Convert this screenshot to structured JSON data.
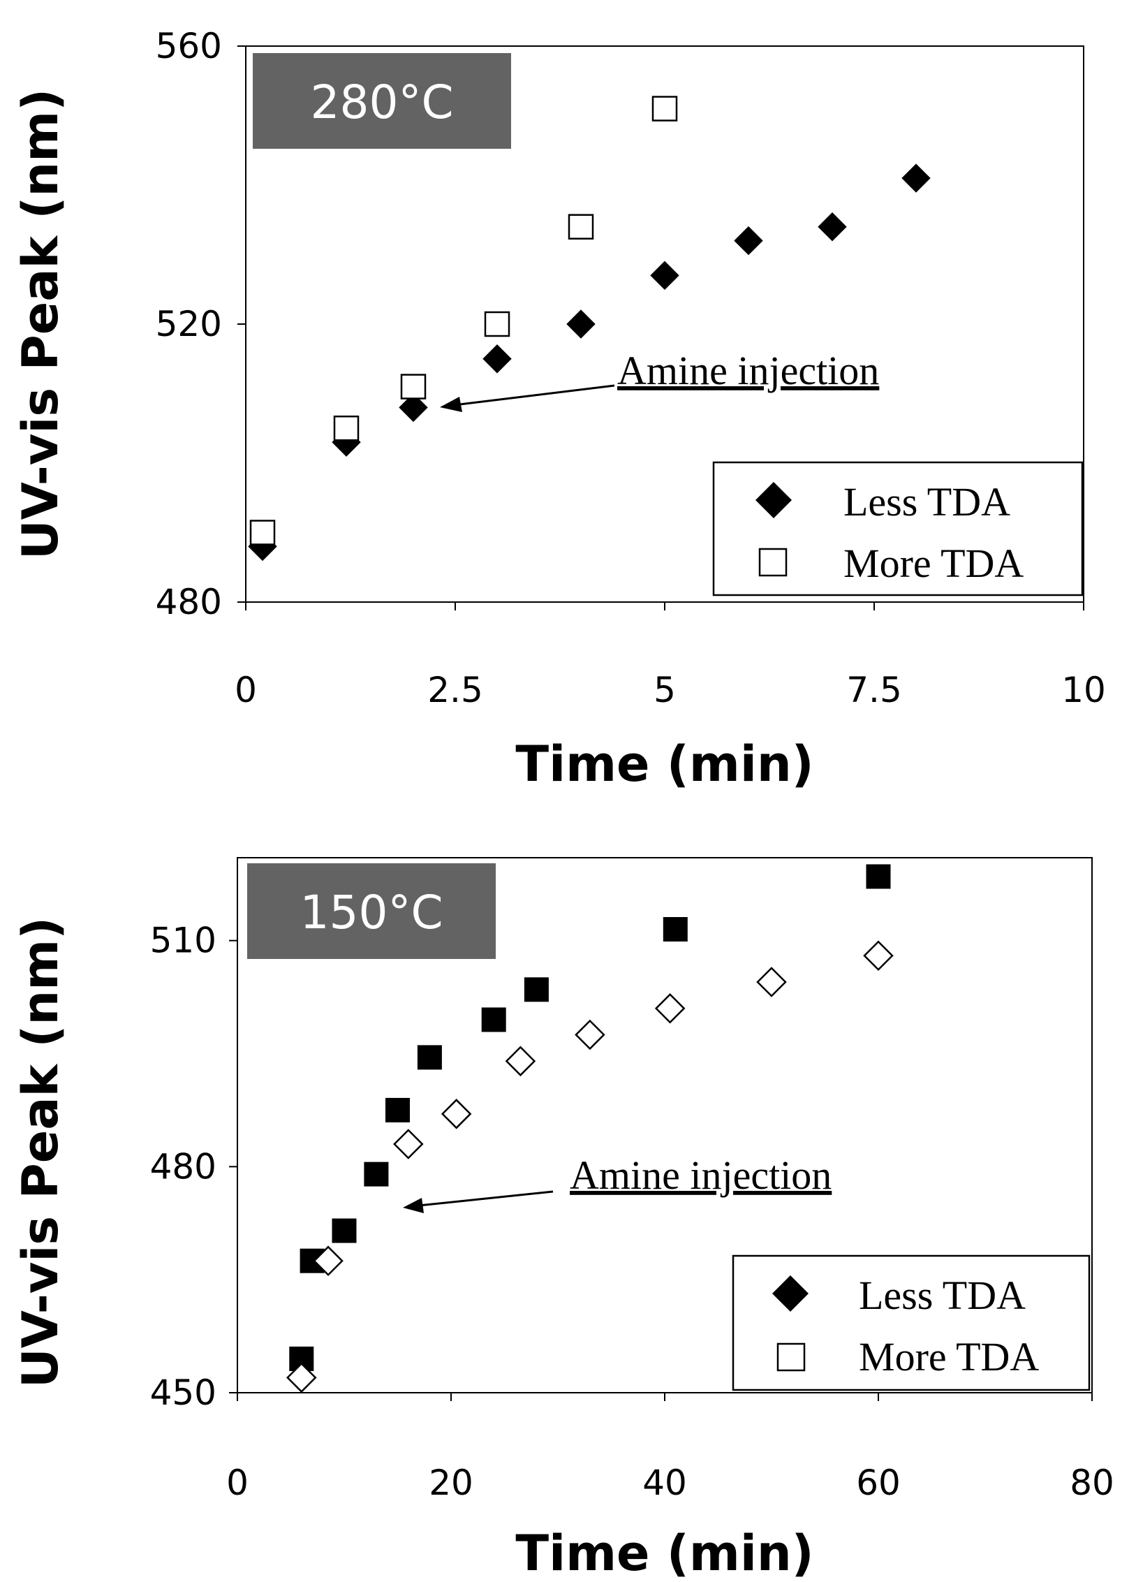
{
  "chart_data": [
    {
      "type": "scatter",
      "badge": "280°C",
      "xlabel": "Time (min)",
      "ylabel": "UV-vis Peak (nm)",
      "xlim": [
        0,
        10
      ],
      "ylim": [
        480,
        560
      ],
      "xticks": [
        0,
        2.5,
        5,
        7.5,
        10
      ],
      "xtick_labels": [
        "0",
        "2.5",
        "5",
        "7.5",
        "10"
      ],
      "yticks": [
        480,
        520,
        560
      ],
      "ytick_labels": [
        "480",
        "520",
        "560"
      ],
      "grid": false,
      "legend_position": "bottom-right",
      "annotation": {
        "text": "Amine injection",
        "x": 2.3,
        "y": 508
      },
      "series": [
        {
          "name": "Less TDA",
          "marker": "filled-diamond",
          "x": [
            0.2,
            1.2,
            2.0,
            3.0,
            4.0,
            5.0,
            6.0,
            7.0,
            8.0
          ],
          "y": [
            488,
            503,
            508,
            515,
            520,
            527,
            532,
            534,
            541
          ]
        },
        {
          "name": "More TDA",
          "marker": "open-square",
          "x": [
            0.2,
            1.2,
            2.0,
            3.0,
            4.0,
            5.0
          ],
          "y": [
            490,
            505,
            511,
            520,
            534,
            551
          ]
        }
      ]
    },
    {
      "type": "scatter",
      "badge": "150°C",
      "xlabel": "Time (min)",
      "ylabel": "UV-vis Peak (nm)",
      "xlim": [
        0,
        80
      ],
      "ylim": [
        450,
        521
      ],
      "xticks": [
        0,
        20,
        40,
        60,
        80
      ],
      "xtick_labels": [
        "0",
        "20",
        "40",
        "60",
        "80"
      ],
      "yticks": [
        450,
        480,
        510
      ],
      "ytick_labels": [
        "450",
        "480",
        "510"
      ],
      "grid": false,
      "legend_position": "bottom-right",
      "annotation": {
        "text": "Amine injection",
        "x": 15,
        "y": 478.5
      },
      "legend": [
        {
          "name": "Less TDA",
          "marker": "filled-diamond"
        },
        {
          "name": "More TDA",
          "marker": "open-square"
        }
      ],
      "series": [
        {
          "name": "filled squares",
          "marker": "filled-square",
          "x": [
            6,
            7,
            10,
            13,
            15,
            18,
            24,
            28,
            41,
            60
          ],
          "y": [
            454.5,
            467.5,
            471.5,
            479,
            487.5,
            494.5,
            499.5,
            503.5,
            511.5,
            518.5
          ]
        },
        {
          "name": "open diamonds",
          "marker": "open-diamond",
          "x": [
            6,
            8.5,
            16,
            20.5,
            26.5,
            33,
            40.5,
            50,
            60
          ],
          "y": [
            452,
            467.5,
            483,
            487,
            494,
            497.5,
            501,
            504.5,
            508
          ]
        }
      ]
    }
  ]
}
